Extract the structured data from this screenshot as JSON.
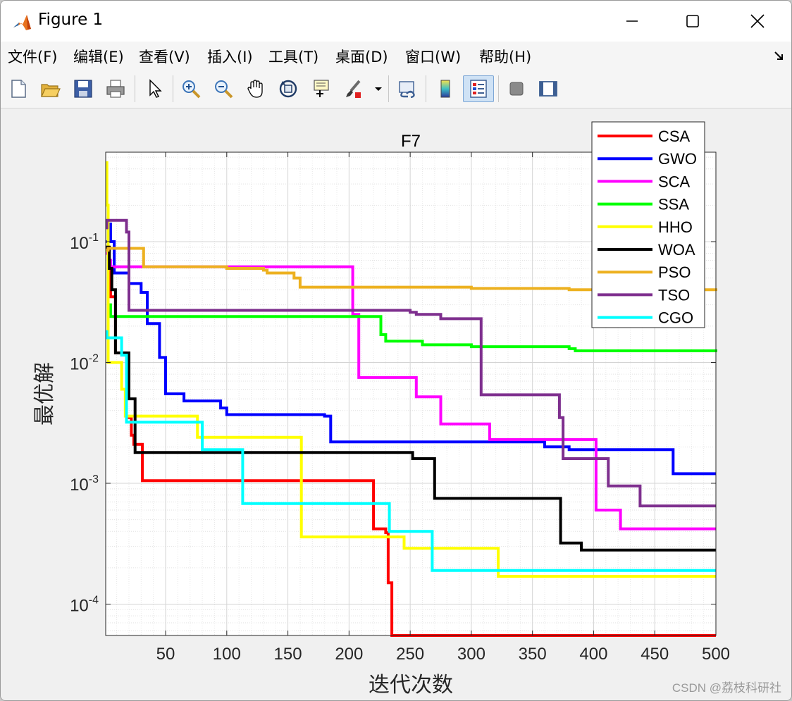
{
  "window": {
    "title": "Figure 1"
  },
  "menu": [
    "文件(F)",
    "编辑(E)",
    "查看(V)",
    "插入(I)",
    "工具(T)",
    "桌面(D)",
    "窗口(W)",
    "帮助(H)"
  ],
  "toolbar_icons": [
    "new-figure-icon",
    "open-file-icon",
    "save-icon",
    "print-icon",
    "pointer-icon",
    "zoom-in-icon",
    "zoom-out-icon",
    "pan-icon",
    "rotate-3d-icon",
    "data-cursor-icon",
    "brush-icon",
    "brush-dropdown-icon",
    "link-plot-icon",
    "colorbar-icon",
    "legend-icon",
    "hide-plot-tools-icon",
    "show-plot-tools-icon"
  ],
  "watermark": "CSDN @荔枝科研社",
  "chart_data": {
    "type": "line",
    "title": "F7",
    "xlabel": "迭代次数",
    "ylabel": "最优解",
    "xlim": [
      1,
      500
    ],
    "ylim": [
      5.5e-05,
      0.55
    ],
    "yscale": "log",
    "grid": true,
    "legend_position": "top-right",
    "xticks": [
      50,
      100,
      150,
      200,
      250,
      300,
      350,
      400,
      450,
      500
    ],
    "xtick_labels": [
      "50",
      "100",
      "150",
      "200",
      "250",
      "300",
      "350",
      "400",
      "450",
      "500"
    ],
    "yticks": [
      0.0001,
      0.001,
      0.01,
      0.1
    ],
    "ytick_bases": [
      "10",
      "10",
      "10",
      "10"
    ],
    "ytick_exps": [
      "-4",
      "-3",
      "-2",
      "-1"
    ],
    "series": [
      {
        "name": "CSA",
        "color": "#ff0000",
        "x": [
          1,
          3,
          5,
          9,
          18,
          22,
          24,
          29,
          31,
          60,
          100,
          150,
          200,
          218,
          220,
          228,
          230,
          232,
          235,
          300,
          400,
          500
        ],
        "y": [
          0.09,
          0.06,
          0.035,
          0.012,
          0.0035,
          0.0025,
          0.0021,
          0.0021,
          0.00105,
          0.00105,
          0.00105,
          0.00105,
          0.00105,
          0.00105,
          0.00042,
          0.00042,
          0.00039,
          0.00015,
          5.5e-05,
          5.5e-05,
          5.5e-05,
          5.5e-05
        ]
      },
      {
        "name": "GWO",
        "color": "#0000ff",
        "x": [
          1,
          3,
          5,
          8,
          12,
          20,
          30,
          35,
          45,
          50,
          65,
          95,
          100,
          150,
          180,
          185,
          230,
          300,
          360,
          380,
          400,
          462,
          465,
          500
        ],
        "y": [
          0.1,
          0.14,
          0.1,
          0.055,
          0.055,
          0.045,
          0.038,
          0.021,
          0.011,
          0.0055,
          0.0048,
          0.0042,
          0.0037,
          0.0037,
          0.0036,
          0.0022,
          0.0022,
          0.0022,
          0.002,
          0.0019,
          0.0019,
          0.0019,
          0.0012,
          0.0012
        ]
      },
      {
        "name": "SCA",
        "color": "#ff00ff",
        "x": [
          1,
          3,
          5,
          10,
          30,
          100,
          150,
          200,
          203,
          208,
          250,
          255,
          270,
          275,
          310,
          315,
          380,
          398,
          402,
          418,
          422,
          500
        ],
        "y": [
          0.08,
          0.07,
          0.062,
          0.062,
          0.062,
          0.062,
          0.062,
          0.062,
          0.025,
          0.0075,
          0.0075,
          0.0052,
          0.0052,
          0.0031,
          0.0031,
          0.0023,
          0.0023,
          0.0023,
          0.0006,
          0.0006,
          0.00042,
          0.00042
        ]
      },
      {
        "name": "SSA",
        "color": "#00ff00",
        "x": [
          1,
          3,
          5,
          10,
          50,
          100,
          150,
          200,
          223,
          226,
          230,
          250,
          260,
          300,
          380,
          385,
          450,
          500
        ],
        "y": [
          0.085,
          0.03,
          0.024,
          0.024,
          0.024,
          0.024,
          0.024,
          0.024,
          0.024,
          0.017,
          0.015,
          0.015,
          0.014,
          0.0135,
          0.013,
          0.0125,
          0.0125,
          0.0122
        ]
      },
      {
        "name": "HHO",
        "color": "#ffff00",
        "x": [
          1,
          2,
          3,
          8,
          12,
          14,
          17,
          22,
          72,
          76,
          80,
          158,
          161,
          240,
          245,
          318,
          322,
          500
        ],
        "y": [
          0.45,
          0.2,
          0.01,
          0.01,
          0.01,
          0.006,
          0.0036,
          0.0036,
          0.0036,
          0.0024,
          0.0024,
          0.0024,
          0.00036,
          0.00036,
          0.00029,
          0.00029,
          0.00017,
          0.00017
        ]
      },
      {
        "name": "WOA",
        "color": "#000000",
        "x": [
          1,
          4,
          6,
          9,
          18,
          20,
          22,
          25,
          100,
          250,
          252,
          267,
          270,
          300,
          370,
          373,
          385,
          390,
          500
        ],
        "y": [
          0.09,
          0.06,
          0.04,
          0.012,
          0.012,
          0.005,
          0.005,
          0.0018,
          0.0018,
          0.0018,
          0.0016,
          0.0016,
          0.00075,
          0.00075,
          0.00075,
          0.00032,
          0.00032,
          0.00028,
          0.00028
        ]
      },
      {
        "name": "PSO",
        "color": "#edb120",
        "x": [
          1,
          3,
          5,
          10,
          20,
          30,
          32,
          70,
          100,
          130,
          133,
          150,
          155,
          160,
          220,
          300,
          380,
          400,
          500
        ],
        "y": [
          0.085,
          0.088,
          0.088,
          0.088,
          0.088,
          0.088,
          0.062,
          0.062,
          0.06,
          0.058,
          0.055,
          0.055,
          0.05,
          0.042,
          0.042,
          0.041,
          0.04,
          0.04,
          0.039
        ]
      },
      {
        "name": "TSO",
        "color": "#7e2f8e",
        "x": [
          1,
          2,
          8,
          12,
          17,
          18,
          20,
          100,
          240,
          250,
          255,
          270,
          275,
          300,
          305,
          308,
          370,
          372,
          375,
          400,
          410,
          412,
          420,
          430,
          435,
          438,
          500
        ],
        "y": [
          0.13,
          0.15,
          0.15,
          0.15,
          0.15,
          0.12,
          0.027,
          0.027,
          0.027,
          0.026,
          0.025,
          0.025,
          0.023,
          0.023,
          0.023,
          0.0054,
          0.0054,
          0.0035,
          0.0016,
          0.0016,
          0.0016,
          0.00095,
          0.00095,
          0.00095,
          0.00095,
          0.00065,
          0.00065
        ]
      },
      {
        "name": "CGO",
        "color": "#00ffff",
        "x": [
          1,
          2,
          3,
          10,
          14,
          18,
          78,
          80,
          112,
          113,
          115,
          220,
          228,
          233,
          265,
          268,
          300,
          400,
          500
        ],
        "y": [
          0.018,
          0.016,
          0.016,
          0.016,
          0.0115,
          0.0032,
          0.0032,
          0.0019,
          0.0019,
          0.00068,
          0.00068,
          0.00068,
          0.00068,
          0.0004,
          0.0004,
          0.00019,
          0.00019,
          0.00019,
          0.00019
        ]
      }
    ]
  }
}
